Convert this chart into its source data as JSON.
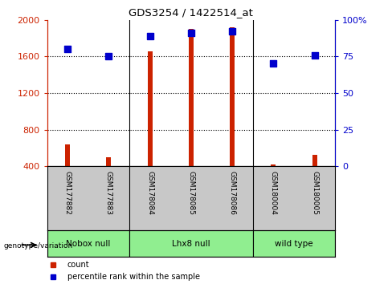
{
  "title": "GDS3254 / 1422514_at",
  "categories": [
    "GSM177882",
    "GSM177883",
    "GSM178084",
    "GSM178085",
    "GSM178086",
    "GSM180004",
    "GSM180005"
  ],
  "count_values": [
    640,
    500,
    1660,
    1900,
    1920,
    420,
    520
  ],
  "percentile_values": [
    80,
    75,
    89,
    91,
    92,
    70,
    76
  ],
  "ylim_left": [
    400,
    2000
  ],
  "ylim_right": [
    0,
    100
  ],
  "yticks_left": [
    400,
    800,
    1200,
    1600,
    2000
  ],
  "yticks_right": [
    0,
    25,
    50,
    75,
    100
  ],
  "ytick_labels_left": [
    "400",
    "800",
    "1200",
    "1600",
    "2000"
  ],
  "ytick_labels_right": [
    "0",
    "25",
    "50",
    "75",
    "100%"
  ],
  "hlines": [
    800,
    1200,
    1600
  ],
  "groups": [
    {
      "label": "Nobox null",
      "start": 0,
      "end": 2
    },
    {
      "label": "Lhx8 null",
      "start": 2,
      "end": 5
    },
    {
      "label": "wild type",
      "start": 5,
      "end": 7
    }
  ],
  "bar_color": "#cc2200",
  "dot_color": "#0000cc",
  "bar_width": 0.12,
  "dot_size": 35,
  "left_axis_color": "#cc2200",
  "right_axis_color": "#0000cc",
  "xlabel_area_color": "#c8c8c8",
  "group_color": "#90ee90",
  "fig_bg": "#ffffff",
  "sep_color": "#000000",
  "legend_count_color": "#cc2200",
  "legend_dot_color": "#0000cc"
}
